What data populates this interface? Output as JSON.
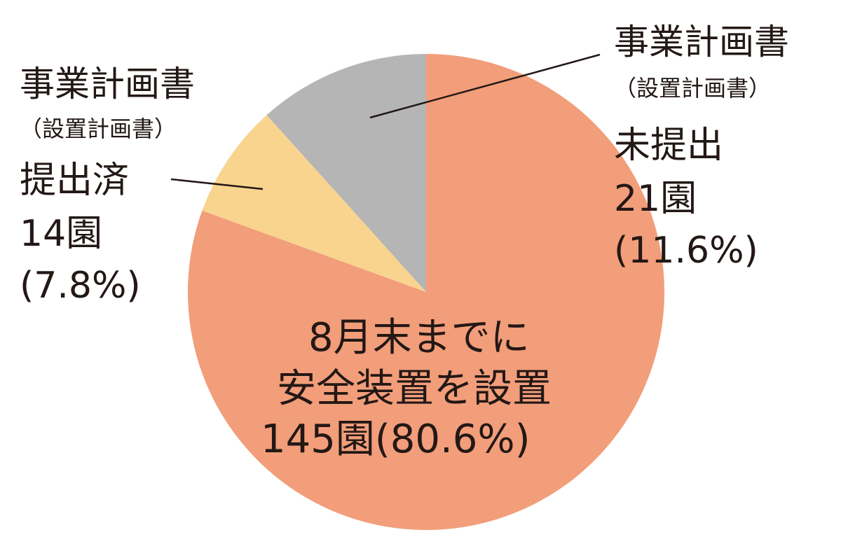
{
  "chart_data": {
    "type": "pie",
    "start": "12 o'clock",
    "direction": "clockwise",
    "slices": [
      {
        "label": [
          "8月末までに",
          "安全装置を設置",
          "145園(80.6%)"
        ],
        "value": 145,
        "percent": 80.6,
        "color": "#f29e7a"
      },
      {
        "label": [
          "事業計画書",
          "（設置計画書）",
          "提出済",
          "14園",
          "(7.8%)"
        ],
        "value": 14,
        "percent": 7.8,
        "color": "#f9d48f"
      },
      {
        "label": [
          "事業計画書",
          "（設置計画書）",
          "未提出",
          "21園",
          "(11.6%)"
        ],
        "value": 21,
        "percent": 11.6,
        "color": "#b5b5b5"
      }
    ]
  }
}
